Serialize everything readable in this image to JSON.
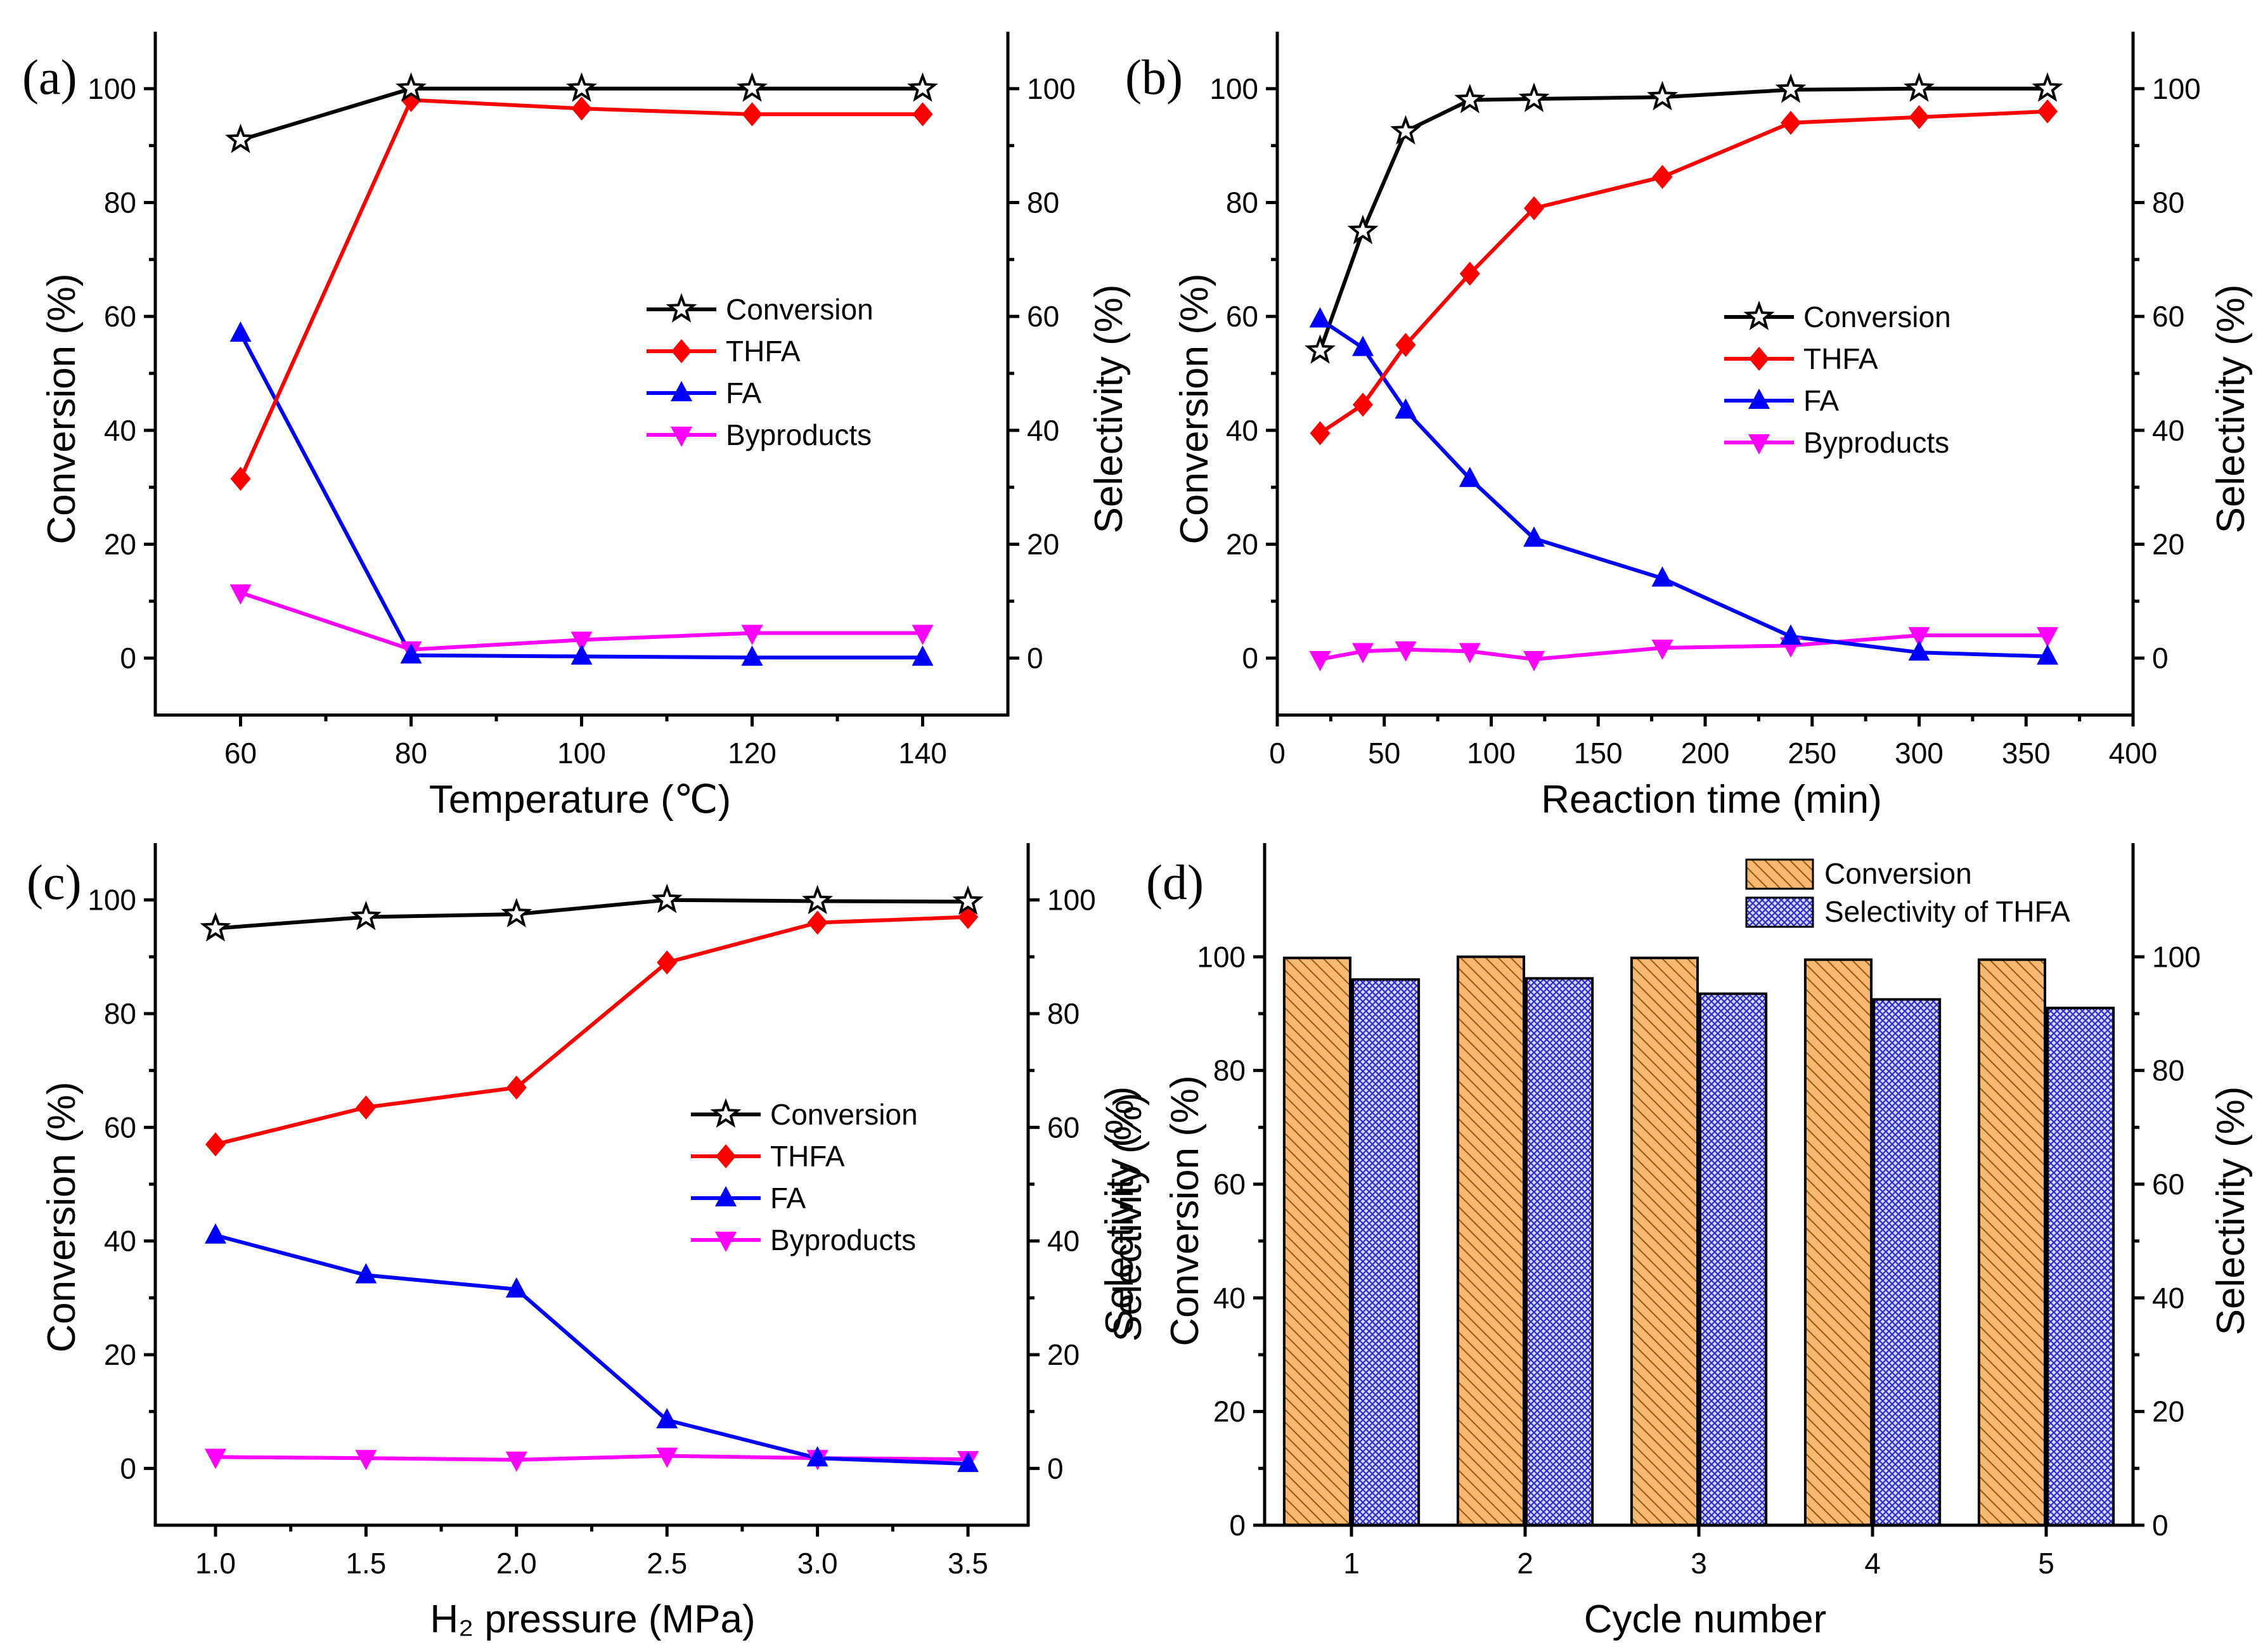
{
  "colors": {
    "conversion": "#000000",
    "thfa": "#ff0000",
    "fa": "#0000ff",
    "byproducts": "#ff00ff",
    "bar_conversion": "#f7b870",
    "bar_selectivity": "#8f96e8",
    "hatch_conversion": "#8a5a1a",
    "hatch_selectivity": "#1a1ab0"
  },
  "chart_data": [
    {
      "panel": "(a)",
      "type": "line",
      "xlabel": "Temperature (℃)",
      "ylabel_left": "Conversion (%)",
      "ylabel_right": "Selectivity (%)",
      "xlim": [
        50,
        150
      ],
      "ylim": [
        -10,
        110
      ],
      "x_ticks": [
        60,
        80,
        100,
        120,
        140
      ],
      "y_ticks": [
        0,
        20,
        40,
        60,
        80,
        100
      ],
      "x": [
        60,
        80,
        100,
        120,
        140
      ],
      "legend": [
        "Conversion",
        "THFA",
        "FA",
        "Byproducts"
      ],
      "series": [
        {
          "name": "Conversion",
          "key": "conversion",
          "marker": "star",
          "values": [
            91,
            100,
            100,
            100,
            100
          ]
        },
        {
          "name": "THFA",
          "key": "thfa",
          "marker": "diamond",
          "values": [
            31.5,
            98,
            96.5,
            95.5,
            95.5
          ]
        },
        {
          "name": "FA",
          "key": "fa",
          "marker": "triangle-up",
          "values": [
            57,
            0.5,
            0.3,
            0.1,
            0.1
          ]
        },
        {
          "name": "Byproducts",
          "key": "byproducts",
          "marker": "triangle-down",
          "values": [
            11.5,
            1.5,
            3.2,
            4.4,
            4.4
          ]
        }
      ]
    },
    {
      "panel": "(b)",
      "type": "line",
      "xlabel": "Reaction time (min)",
      "ylabel_left": "Conversion (%)",
      "ylabel_right": "Selectivity (%)",
      "xlim": [
        0,
        400
      ],
      "ylim": [
        -10,
        110
      ],
      "x_ticks": [
        0,
        50,
        100,
        150,
        200,
        250,
        300,
        350,
        400
      ],
      "y_ticks": [
        0,
        20,
        40,
        60,
        80,
        100
      ],
      "x": [
        20,
        40,
        60,
        90,
        120,
        180,
        240,
        300,
        360
      ],
      "legend": [
        "Conversion",
        "THFA",
        "FA",
        "Byproducts"
      ],
      "series": [
        {
          "name": "Conversion",
          "key": "conversion",
          "marker": "star",
          "values": [
            54,
            75,
            92.5,
            98,
            98.2,
            98.5,
            99.8,
            100,
            100
          ]
        },
        {
          "name": "THFA",
          "key": "thfa",
          "marker": "diamond",
          "values": [
            39.5,
            44.5,
            55,
            67.5,
            79,
            84.5,
            94,
            95,
            96
          ]
        },
        {
          "name": "FA",
          "key": "fa",
          "marker": "triangle-up",
          "values": [
            59.5,
            54.5,
            43.5,
            31.5,
            21,
            14,
            3.8,
            1,
            0.3
          ]
        },
        {
          "name": "Byproducts",
          "key": "byproducts",
          "marker": "triangle-down",
          "values": [
            -0.2,
            1.2,
            1.5,
            1.2,
            -0.2,
            1.8,
            2.2,
            4,
            4
          ]
        }
      ]
    },
    {
      "panel": "(c)",
      "type": "line",
      "xlabel": "H₂ pressure (MPa)",
      "ylabel_left": "Conversion (%)",
      "ylabel_right": "Selectivity (%)",
      "xlim": [
        0.8,
        3.7
      ],
      "ylim": [
        -10,
        110
      ],
      "x_ticks": [
        1.0,
        1.5,
        2.0,
        2.5,
        3.0,
        3.5
      ],
      "x_tick_labels": [
        "1.0",
        "1.5",
        "2.0",
        "2.5",
        "3.0",
        "3.5"
      ],
      "y_ticks": [
        0,
        20,
        40,
        60,
        80,
        100
      ],
      "x": [
        1.0,
        1.5,
        2.0,
        2.5,
        3.0,
        3.5
      ],
      "legend": [
        "Conversion",
        "THFA",
        "FA",
        "Byproducts"
      ],
      "series": [
        {
          "name": "Conversion",
          "key": "conversion",
          "marker": "star",
          "values": [
            95,
            97,
            97.5,
            100,
            99.8,
            99.7
          ]
        },
        {
          "name": "THFA",
          "key": "thfa",
          "marker": "diamond",
          "values": [
            57,
            63.5,
            67,
            89,
            96,
            97
          ]
        },
        {
          "name": "FA",
          "key": "fa",
          "marker": "triangle-up",
          "values": [
            41,
            34,
            31.5,
            8.5,
            1.8,
            0.8
          ]
        },
        {
          "name": "Byproducts",
          "key": "byproducts",
          "marker": "triangle-down",
          "values": [
            2,
            1.8,
            1.5,
            2.2,
            1.8,
            1.6
          ]
        }
      ]
    },
    {
      "panel": "(d)",
      "type": "bar",
      "xlabel": "Cycle number",
      "ylabel_left": "Conversion (%)",
      "ylabel_right": "Selectivity (%)",
      "ylabel_mid": "Selectivity (%)",
      "ylim": [
        0,
        120
      ],
      "y_ticks": [
        0,
        20,
        40,
        60,
        80,
        100
      ],
      "categories": [
        "1",
        "2",
        "3",
        "4",
        "5"
      ],
      "legend": [
        "Conversion",
        "Selectivity of THFA"
      ],
      "series": [
        {
          "name": "Conversion",
          "key": "bar_conversion",
          "values": [
            99.8,
            100,
            99.8,
            99.5,
            99.5
          ]
        },
        {
          "name": "Selectivity of THFA",
          "key": "bar_selectivity",
          "values": [
            96,
            96.2,
            93.5,
            92.5,
            91
          ]
        }
      ]
    }
  ]
}
